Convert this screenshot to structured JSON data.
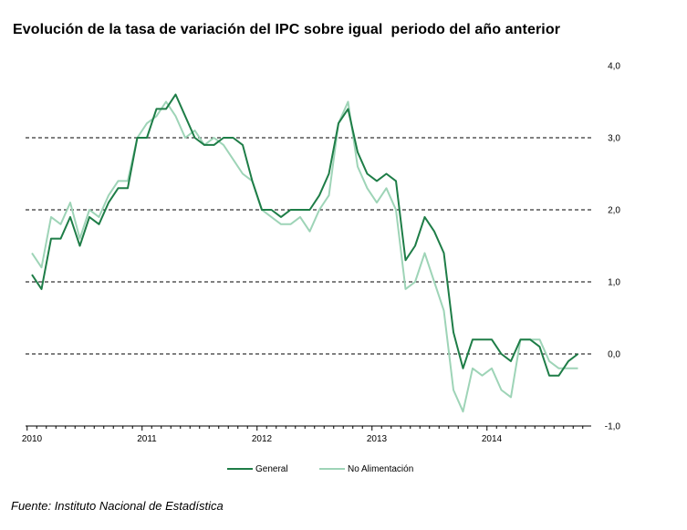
{
  "chart_data": {
    "type": "line",
    "title": "Evolución de la tasa de variación del IPC sobre igual  periodo del año anterior",
    "source": "Fuente: Instituto Nacional de Estadística",
    "ylim": [
      -1.0,
      4.0
    ],
    "yticks": [
      "4,0",
      "3,0",
      "2,0",
      "1,0",
      "0,0",
      "-1,0"
    ],
    "ytick_values": [
      4,
      3,
      2,
      1,
      0,
      -1
    ],
    "gridlines_dashed": [
      3,
      2,
      1,
      0
    ],
    "x_start": "2010-01",
    "x_end": "2014-12",
    "xticks": [
      "2010",
      "2011",
      "2012",
      "2013",
      "2014"
    ],
    "legend_position": "bottom-center",
    "series": [
      {
        "name": "General",
        "color": "#1e7d47",
        "values": [
          1.1,
          0.9,
          1.6,
          1.6,
          1.9,
          1.5,
          1.9,
          1.8,
          2.1,
          2.3,
          2.3,
          3.0,
          3.0,
          3.4,
          3.4,
          3.6,
          3.3,
          3.0,
          2.9,
          2.9,
          3.0,
          3.0,
          2.9,
          2.4,
          2.0,
          2.0,
          1.9,
          2.0,
          2.0,
          2.0,
          2.2,
          2.5,
          3.2,
          3.4,
          2.8,
          2.5,
          2.4,
          2.5,
          2.4,
          1.3,
          1.5,
          1.9,
          1.7,
          1.4,
          0.3,
          -0.2,
          0.2,
          0.2,
          0.2,
          0.0,
          -0.1,
          0.2,
          0.2,
          0.1,
          -0.3,
          -0.3,
          -0.1,
          0.0
        ]
      },
      {
        "name": "No Alimentación",
        "color": "#9ed4b7",
        "values": [
          1.4,
          1.2,
          1.9,
          1.8,
          2.1,
          1.6,
          2.0,
          1.9,
          2.2,
          2.4,
          2.4,
          3.0,
          3.2,
          3.3,
          3.5,
          3.3,
          3.0,
          3.1,
          2.9,
          3.0,
          2.9,
          2.7,
          2.5,
          2.4,
          2.0,
          1.9,
          1.8,
          1.8,
          1.9,
          1.7,
          2.0,
          2.2,
          3.2,
          3.5,
          2.6,
          2.3,
          2.1,
          2.3,
          2.0,
          0.9,
          1.0,
          1.4,
          1.0,
          0.6,
          -0.5,
          -0.8,
          -0.2,
          -0.3,
          -0.2,
          -0.5,
          -0.6,
          0.2,
          0.2,
          0.2,
          -0.1,
          -0.2,
          -0.2,
          -0.2
        ]
      }
    ]
  }
}
